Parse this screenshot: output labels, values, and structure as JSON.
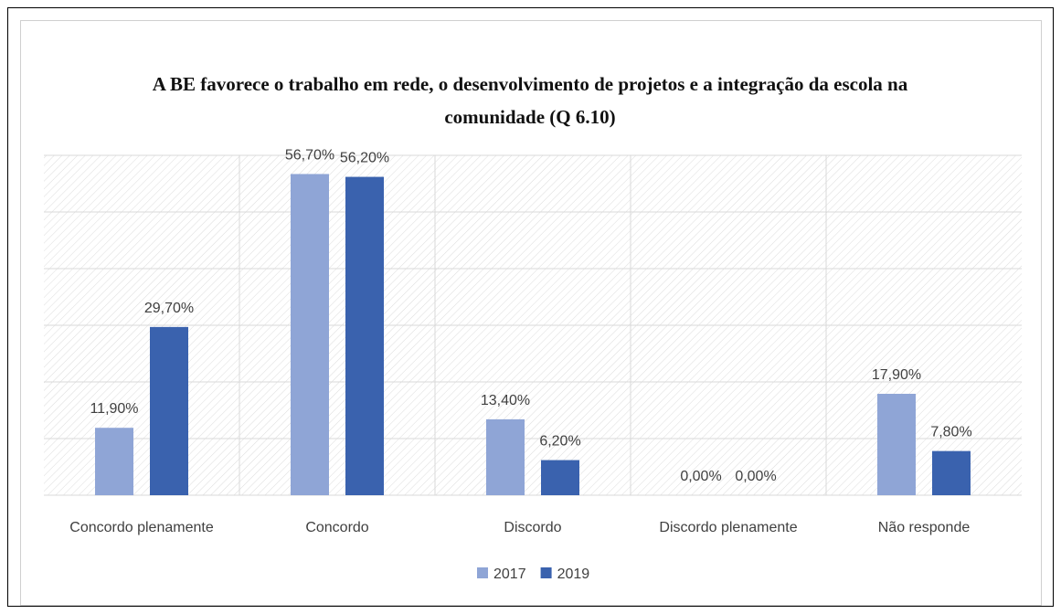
{
  "chart_data": {
    "type": "bar",
    "title": "A BE favorece o trabalho em rede, o desenvolvimento de projetos e a integração da escola na comunidade (Q 6.10)",
    "categories": [
      "Concordo plenamente",
      "Concordo",
      "Discordo",
      "Discordo plenamente",
      "Não responde"
    ],
    "series": [
      {
        "name": "2017",
        "color": "#8fa5d6",
        "values": [
          11.9,
          56.7,
          13.4,
          0,
          17.9
        ],
        "value_labels": [
          "11,90%",
          "56,70%",
          "13,40%",
          "0,00%",
          "17,90%"
        ]
      },
      {
        "name": "2019",
        "color": "#3a62ae",
        "values": [
          29.7,
          56.2,
          6.2,
          0,
          7.8
        ],
        "value_labels": [
          "29,70%",
          "56,20%",
          "6,20%",
          "0,00%",
          "7,80%"
        ]
      }
    ],
    "ylim": [
      0,
      60
    ],
    "yticks": [
      0,
      10,
      20,
      30,
      40,
      50,
      60
    ],
    "grid": true,
    "legend": "bottom"
  }
}
